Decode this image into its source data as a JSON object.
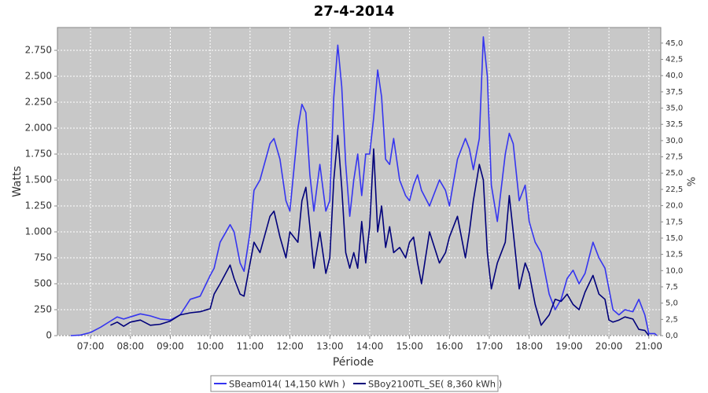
{
  "chart_data": {
    "type": "line",
    "title": "27-4-2014",
    "x_label": "Période",
    "y_label": "Watts",
    "y2_label": "%",
    "x": [
      6.5,
      6.75,
      7,
      7.25,
      7.5,
      7.67,
      7.83,
      8,
      8.25,
      8.5,
      8.75,
      9,
      9.25,
      9.5,
      9.75,
      10,
      10.1,
      10.25,
      10.5,
      10.6,
      10.75,
      10.85,
      11,
      11.1,
      11.25,
      11.5,
      11.6,
      11.75,
      11.9,
      12,
      12.2,
      12.3,
      12.4,
      12.5,
      12.6,
      12.75,
      12.9,
      13,
      13.1,
      13.2,
      13.3,
      13.4,
      13.5,
      13.6,
      13.7,
      13.8,
      13.9,
      14,
      14.1,
      14.2,
      14.3,
      14.4,
      14.5,
      14.6,
      14.75,
      14.9,
      15,
      15.1,
      15.2,
      15.3,
      15.5,
      15.75,
      15.9,
      16,
      16.2,
      16.4,
      16.5,
      16.6,
      16.75,
      16.85,
      16.95,
      17.05,
      17.2,
      17.4,
      17.5,
      17.6,
      17.75,
      17.9,
      18,
      18.15,
      18.3,
      18.5,
      18.65,
      18.8,
      18.95,
      19.1,
      19.25,
      19.4,
      19.6,
      19.75,
      19.9,
      20,
      20.1,
      20.25,
      20.4,
      20.6,
      20.75,
      20.9,
      21,
      21.15,
      21.2
    ],
    "series": [
      {
        "name": "SBeam014( 14,150 kWh )",
        "color": "#3535f0",
        "values": [
          0,
          5,
          30,
          80,
          140,
          180,
          160,
          180,
          210,
          190,
          160,
          150,
          200,
          350,
          380,
          580,
          650,
          900,
          1070,
          1000,
          700,
          620,
          1000,
          1400,
          1500,
          1850,
          1900,
          1700,
          1300,
          1200,
          2000,
          2230,
          2150,
          1550,
          1200,
          1650,
          1200,
          1300,
          2300,
          2800,
          2400,
          1650,
          1150,
          1500,
          1750,
          1350,
          1750,
          1750,
          2100,
          2560,
          2300,
          1700,
          1650,
          1900,
          1500,
          1350,
          1300,
          1450,
          1550,
          1400,
          1250,
          1500,
          1400,
          1250,
          1700,
          1900,
          1800,
          1600,
          1900,
          2880,
          2500,
          1450,
          1100,
          1750,
          1950,
          1850,
          1300,
          1450,
          1100,
          900,
          800,
          400,
          250,
          350,
          550,
          630,
          500,
          600,
          900,
          750,
          650,
          450,
          250,
          200,
          250,
          230,
          350,
          200,
          20,
          20,
          0
        ]
      },
      {
        "name": "SBoy2100TL_SE( 8,360 kWh )",
        "color": "#00007a",
        "values": [
          null,
          null,
          null,
          null,
          100,
          130,
          90,
          130,
          150,
          100,
          110,
          140,
          200,
          220,
          230,
          260,
          400,
          500,
          680,
          550,
          400,
          380,
          700,
          900,
          800,
          1150,
          1200,
          950,
          750,
          1000,
          900,
          1300,
          1430,
          1050,
          650,
          1000,
          600,
          750,
          1500,
          1930,
          1430,
          800,
          650,
          800,
          650,
          1100,
          700,
          1050,
          1800,
          1000,
          1250,
          850,
          1050,
          800,
          850,
          750,
          900,
          950,
          700,
          500,
          1000,
          700,
          800,
          950,
          1150,
          750,
          1000,
          1300,
          1650,
          1500,
          800,
          450,
          700,
          900,
          1350,
          1000,
          450,
          700,
          600,
          300,
          100,
          200,
          350,
          330,
          400,
          300,
          250,
          420,
          580,
          400,
          350,
          150,
          130,
          150,
          180,
          160,
          60,
          50,
          0,
          null,
          null
        ]
      }
    ],
    "xlim": [
      6.17,
      21.3
    ],
    "xticks": [
      {
        "value": 7,
        "label": "07:00"
      },
      {
        "value": 8,
        "label": "08:00"
      },
      {
        "value": 9,
        "label": "09:00"
      },
      {
        "value": 10,
        "label": "10:00"
      },
      {
        "value": 11,
        "label": "11:00"
      },
      {
        "value": 12,
        "label": "12:00"
      },
      {
        "value": 13,
        "label": "13:00"
      },
      {
        "value": 14,
        "label": "14:00"
      },
      {
        "value": 15,
        "label": "15:00"
      },
      {
        "value": 16,
        "label": "16:00"
      },
      {
        "value": 17,
        "label": "17:00"
      },
      {
        "value": 18,
        "label": "18:00"
      },
      {
        "value": 19,
        "label": "19:00"
      },
      {
        "value": 20,
        "label": "20:00"
      },
      {
        "value": 21,
        "label": "21:00"
      }
    ],
    "ylim": [
      0,
      2970
    ],
    "yticks": [
      0,
      250,
      500,
      750,
      {
        "value": 1000,
        "label": "1.000"
      },
      {
        "value": 1250,
        "label": "1.250"
      },
      {
        "value": 1500,
        "label": "1.500"
      },
      {
        "value": 1750,
        "label": "1.750"
      },
      {
        "value": 2000,
        "label": "2.000"
      },
      {
        "value": 2250,
        "label": "2.250"
      },
      {
        "value": 2500,
        "label": "2.500"
      },
      {
        "value": 2750,
        "label": "2.750"
      }
    ],
    "y2lim": [
      0,
      47.4
    ],
    "y2ticks": [
      {
        "value": 0,
        "label": "0,0"
      },
      {
        "value": 2.5,
        "label": "2,5"
      },
      {
        "value": 5,
        "label": "5,0"
      },
      {
        "value": 7.5,
        "label": "7,5"
      },
      {
        "value": 10,
        "label": "10,0"
      },
      {
        "value": 12.5,
        "label": "12,5"
      },
      {
        "value": 15,
        "label": "15,0"
      },
      {
        "value": 17.5,
        "label": "17,5"
      },
      {
        "value": 20,
        "label": "20,0"
      },
      {
        "value": 22.5,
        "label": "22,5"
      },
      {
        "value": 25,
        "label": "25,0"
      },
      {
        "value": 27.5,
        "label": "27,5"
      },
      {
        "value": 30,
        "label": "30,0"
      },
      {
        "value": 32.5,
        "label": "32,5"
      },
      {
        "value": 35,
        "label": "35,0"
      },
      {
        "value": 37.5,
        "label": "37,5"
      },
      {
        "value": 40,
        "label": "40,0"
      },
      {
        "value": 42.5,
        "label": "42,5"
      },
      {
        "value": 45,
        "label": "45,0"
      }
    ],
    "grid": true
  }
}
